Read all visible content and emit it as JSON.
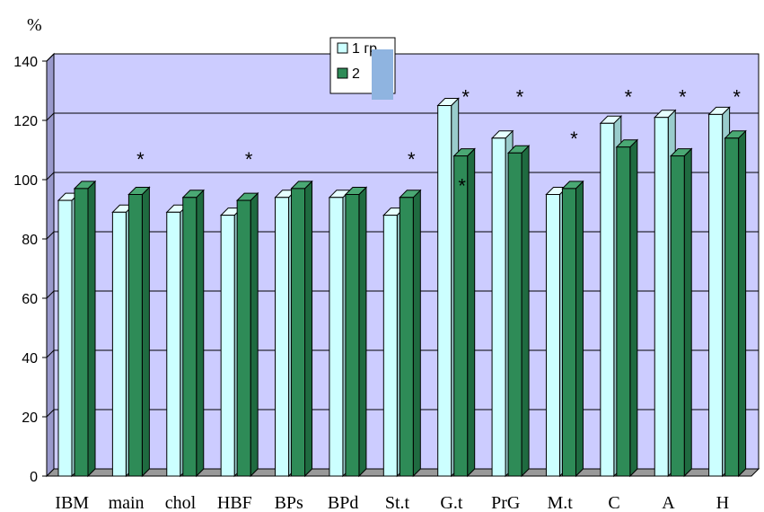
{
  "chart_data": {
    "type": "bar",
    "unit_label": "%",
    "categories": [
      "IBM",
      "main",
      "chol",
      "HBF",
      "BPs",
      "BPd",
      "St.t",
      "G.t",
      "PrG",
      "M.t",
      "C",
      "A",
      "H"
    ],
    "series": [
      {
        "name": "1 гр",
        "color": "#ccffff",
        "values": [
          93,
          89,
          89,
          88,
          94,
          94,
          88,
          125,
          114,
          95,
          119,
          121,
          122
        ]
      },
      {
        "name": "2",
        "color": "#2e8b57",
        "values": [
          97,
          95,
          94,
          93,
          97,
          95,
          94,
          108,
          109,
          97,
          111,
          108,
          114
        ]
      }
    ],
    "yticks": [
      "0",
      "20",
      "40",
      "60",
      "80",
      "100",
      "120",
      "140"
    ],
    "ylim": [
      0,
      140
    ],
    "annotations": [
      {
        "text": "*",
        "category": "main",
        "y": 107
      },
      {
        "text": "*",
        "category": "HBF",
        "y": 107
      },
      {
        "text": "*",
        "category": "St.t",
        "y": 107
      },
      {
        "text": "*",
        "category": "G.t",
        "y": 128
      },
      {
        "text": "*",
        "category": "G.t",
        "y": 98
      },
      {
        "text": "*",
        "category": "PrG",
        "y": 128
      },
      {
        "text": "*",
        "category": "M.t",
        "y": 114
      },
      {
        "text": "*",
        "category": "C",
        "y": 128
      },
      {
        "text": "*",
        "category": "A",
        "y": 128
      },
      {
        "text": "*",
        "category": "H",
        "y": 128
      }
    ],
    "plot_background": "#ccccff",
    "legend_position": "top-center",
    "grid": true
  }
}
